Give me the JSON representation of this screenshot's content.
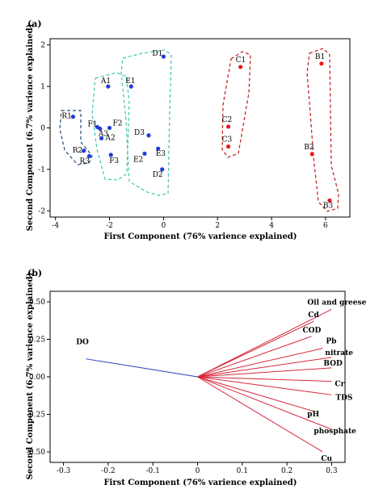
{
  "colors": {
    "frame": "#000000",
    "points_left": "#1f3fd6",
    "points_right": "#e41a1c",
    "group_R": "#1f4e79",
    "group_teal": "#3cc5b4",
    "group_red": "#c0181a",
    "vector_DO": "#2a3fb8",
    "vector_others": "#d6263a"
  },
  "chart_data": [
    {
      "panel_label": "(a)",
      "type": "scatter",
      "xlabel": "First Component (76% varience explained)",
      "ylabel": "Second Component (6.7% varience explained)",
      "xlim": [
        -4.2,
        6.9
      ],
      "ylim": [
        -2.15,
        2.15
      ],
      "xticks": [
        -4,
        -2,
        0,
        2,
        4,
        6
      ],
      "yticks": [
        -2,
        -1,
        0,
        1,
        2
      ],
      "grid": false,
      "points": [
        {
          "label": "R1",
          "x": -3.35,
          "y": 0.27,
          "color": "blue"
        },
        {
          "label": "R2",
          "x": -2.95,
          "y": -0.55,
          "color": "blue"
        },
        {
          "label": "R3",
          "x": -2.75,
          "y": -0.68,
          "color": "blue"
        },
        {
          "label": "A1",
          "x": -2.05,
          "y": 1.0,
          "color": "blue"
        },
        {
          "label": "F1",
          "x": -2.45,
          "y": 0.02,
          "color": "blue"
        },
        {
          "label": "A3",
          "x": -2.35,
          "y": -0.02,
          "color": "blue"
        },
        {
          "label": "A2",
          "x": -2.3,
          "y": -0.25,
          "color": "blue"
        },
        {
          "label": "F2",
          "x": -2.0,
          "y": 0.0,
          "color": "blue"
        },
        {
          "label": "F3",
          "x": -1.95,
          "y": -0.65,
          "color": "blue"
        },
        {
          "label": "E1",
          "x": -1.2,
          "y": 1.0,
          "color": "blue"
        },
        {
          "label": "D3",
          "x": -0.55,
          "y": -0.18,
          "color": "blue"
        },
        {
          "label": "E2",
          "x": -0.7,
          "y": -0.62,
          "color": "blue"
        },
        {
          "label": "E3",
          "x": -0.2,
          "y": -0.5,
          "color": "blue"
        },
        {
          "label": "D1",
          "x": 0.0,
          "y": 1.72,
          "color": "blue"
        },
        {
          "label": "D2",
          "x": -0.05,
          "y": -1.0,
          "color": "blue"
        },
        {
          "label": "C1",
          "x": 2.85,
          "y": 1.47,
          "color": "red"
        },
        {
          "label": "C2",
          "x": 2.4,
          "y": 0.03,
          "color": "red"
        },
        {
          "label": "C3",
          "x": 2.4,
          "y": -0.45,
          "color": "red"
        },
        {
          "label": "B1",
          "x": 5.85,
          "y": 1.55,
          "color": "red"
        },
        {
          "label": "B2",
          "x": 5.5,
          "y": -0.63,
          "color": "red"
        },
        {
          "label": "B3",
          "x": 6.15,
          "y": -1.75,
          "color": "red"
        }
      ],
      "groups": [
        {
          "members": [
            "R1",
            "R2",
            "R3"
          ],
          "color": "group_R"
        },
        {
          "members": [
            "A1",
            "A2",
            "A3",
            "F1",
            "F2",
            "F3"
          ],
          "color": "group_teal"
        },
        {
          "members": [
            "D1",
            "D2",
            "D3",
            "E1",
            "E2",
            "E3"
          ],
          "color": "group_teal"
        },
        {
          "members": [
            "C1",
            "C2",
            "C3"
          ],
          "color": "group_red"
        },
        {
          "members": [
            "B1",
            "B2",
            "B3"
          ],
          "color": "group_red"
        }
      ]
    },
    {
      "panel_label": "(b)",
      "type": "loading-plot",
      "xlabel": "First Component (76%  varience explained)",
      "ylabel": "Second Component (6.7% varience explained)",
      "xlim": [
        -0.33,
        0.33
      ],
      "ylim": [
        -0.57,
        0.57
      ],
      "xticks": [
        -0.3,
        -0.2,
        -0.1,
        0.0,
        0.1,
        0.2,
        0.3
      ],
      "ytick_labels": [
        "0.50",
        "0.25",
        "0.00",
        "-0.25",
        "-0.50"
      ],
      "yticks": [
        0.5,
        0.25,
        0.0,
        -0.25,
        -0.5
      ],
      "grid": false,
      "vectors": [
        {
          "label": "DO",
          "x": -0.25,
          "y": 0.12
        },
        {
          "label": "Oil and greese",
          "x": 0.3,
          "y": 0.45
        },
        {
          "label": "Cd",
          "x": 0.26,
          "y": 0.37
        },
        {
          "label": "COD",
          "x": 0.255,
          "y": 0.27
        },
        {
          "label": "Pb",
          "x": 0.28,
          "y": 0.19
        },
        {
          "label": "nitrate",
          "x": 0.3,
          "y": 0.13
        },
        {
          "label": "BOD",
          "x": 0.3,
          "y": 0.06
        },
        {
          "label": "Cr",
          "x": 0.3,
          "y": -0.03
        },
        {
          "label": "TDS",
          "x": 0.3,
          "y": -0.12
        },
        {
          "label": "pH",
          "x": 0.26,
          "y": -0.23
        },
        {
          "label": "phosphate",
          "x": 0.3,
          "y": -0.35
        },
        {
          "label": "Cu",
          "x": 0.28,
          "y": -0.5
        }
      ]
    }
  ]
}
